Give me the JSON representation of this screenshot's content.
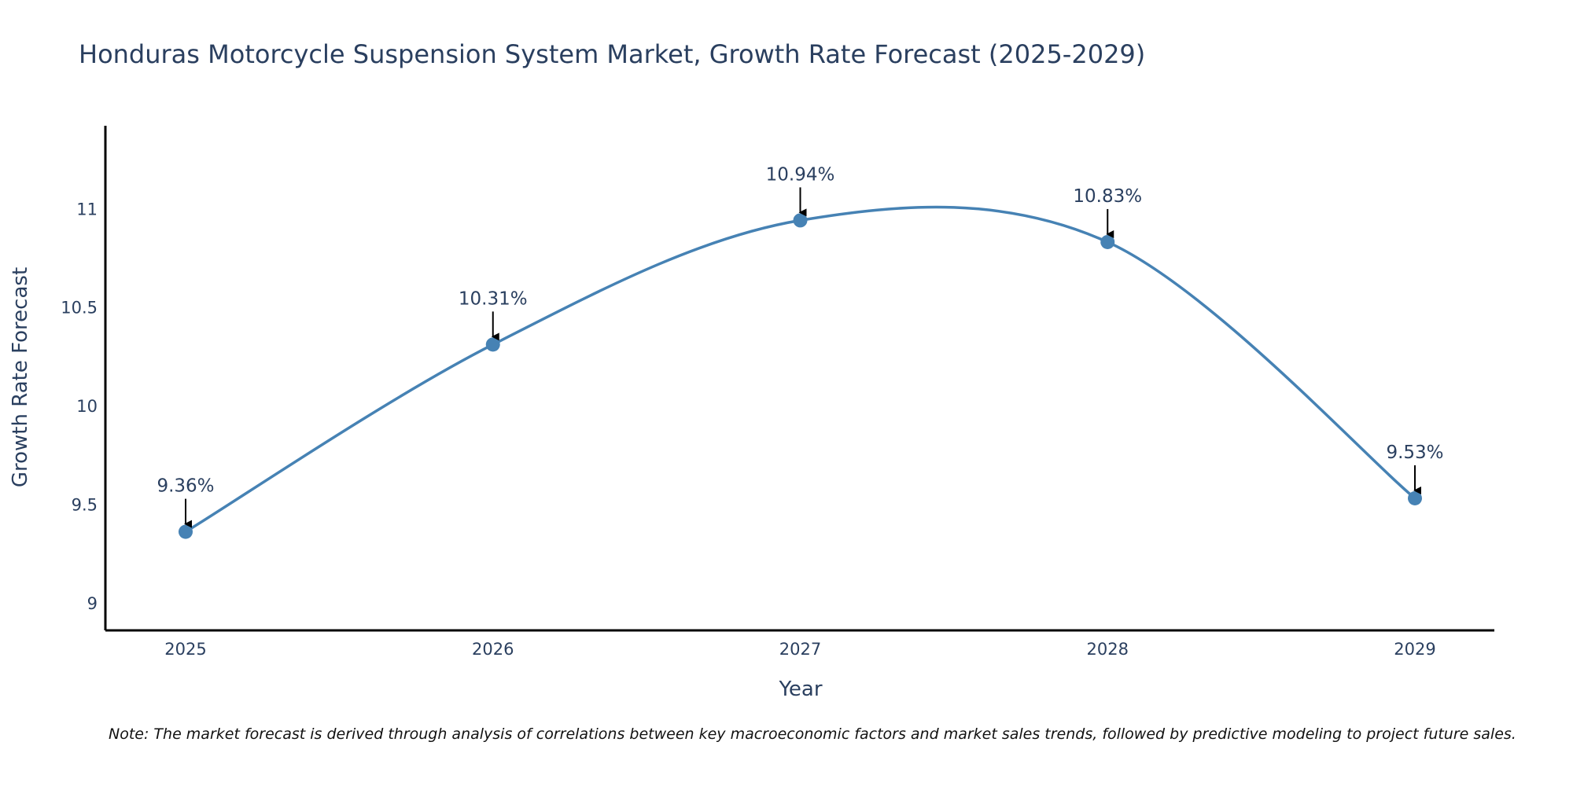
{
  "chart_data": {
    "type": "line",
    "title": "Honduras Motorcycle Suspension System Market, Growth Rate Forecast (2025-2029)",
    "xlabel": "Year",
    "ylabel": "Growth Rate Forecast",
    "categories": [
      "2025",
      "2026",
      "2027",
      "2028",
      "2029"
    ],
    "values": [
      9.36,
      10.31,
      10.94,
      10.83,
      9.53
    ],
    "data_labels": [
      "9.36%",
      "10.31%",
      "10.94%",
      "10.83%",
      "9.53%"
    ],
    "yticks": [
      9,
      9.5,
      10,
      10.5,
      11
    ],
    "ytick_labels": [
      "9",
      "9.5",
      "10",
      "10.5",
      "11"
    ],
    "ylim": [
      8.86,
      11.42
    ],
    "grid": false,
    "legend": "none",
    "line_shape": "spline",
    "series_color": "#4682b4",
    "text_color": "#2a3f5f",
    "note": "Note: The market forecast is derived through analysis of correlations between key macroeconomic factors and market sales trends, followed by predictive modeling to project future sales."
  }
}
